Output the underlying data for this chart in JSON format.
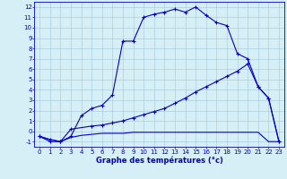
{
  "xlabel": "Graphe des températures (°c)",
  "xlim": [
    -0.5,
    23.5
  ],
  "ylim": [
    -1.5,
    12.5
  ],
  "yticks": [
    -1,
    0,
    1,
    2,
    3,
    4,
    5,
    6,
    7,
    8,
    9,
    10,
    11,
    12
  ],
  "xticks": [
    0,
    1,
    2,
    3,
    4,
    5,
    6,
    7,
    8,
    9,
    10,
    11,
    12,
    13,
    14,
    15,
    16,
    17,
    18,
    19,
    20,
    21,
    22,
    23
  ],
  "background_color": "#d6eef5",
  "grid_color": "#a0c8d8",
  "line_color": "#0000cc",
  "curve1_x": [
    0,
    1,
    2,
    3,
    4,
    5,
    6,
    7,
    8,
    9,
    10,
    11,
    12,
    13,
    14,
    15,
    16,
    17,
    18,
    19,
    20,
    21,
    22,
    23
  ],
  "curve1_y": [
    -0.5,
    -1.0,
    -1.0,
    -0.5,
    1.5,
    2.2,
    2.5,
    3.5,
    8.7,
    8.7,
    11.0,
    11.3,
    11.5,
    11.8,
    11.5,
    12.0,
    11.2,
    10.5,
    10.2,
    7.5,
    7.0,
    4.3,
    3.2,
    -1.0
  ],
  "curve2_x": [
    0,
    1,
    2,
    3,
    5,
    6,
    7,
    8,
    9,
    10,
    11,
    12,
    13,
    14,
    15,
    16,
    17,
    18,
    19,
    20,
    21,
    22,
    23
  ],
  "curve2_y": [
    -0.5,
    -0.8,
    -1.0,
    0.2,
    0.5,
    0.6,
    0.8,
    1.0,
    1.3,
    1.6,
    1.9,
    2.2,
    2.7,
    3.2,
    3.8,
    4.3,
    4.8,
    5.3,
    5.8,
    6.5,
    4.3,
    3.2,
    -1.0
  ],
  "curve3_x": [
    0,
    1,
    2,
    3,
    4,
    5,
    6,
    7,
    8,
    9,
    10,
    11,
    12,
    13,
    14,
    15,
    16,
    17,
    18,
    19,
    20,
    21,
    22,
    23
  ],
  "curve3_y": [
    -0.5,
    -0.8,
    -1.0,
    -0.6,
    -0.4,
    -0.3,
    -0.2,
    -0.2,
    -0.2,
    -0.1,
    -0.1,
    -0.1,
    -0.1,
    -0.1,
    -0.1,
    -0.1,
    -0.1,
    -0.1,
    -0.1,
    -0.1,
    -0.1,
    -0.1,
    -1.0,
    -1.0
  ],
  "marker1": true,
  "marker2": true,
  "marker3": false,
  "linewidth": 0.8,
  "markersize": 3,
  "tick_fontsize": 5,
  "xlabel_fontsize": 6,
  "label_color": "#0000cc"
}
